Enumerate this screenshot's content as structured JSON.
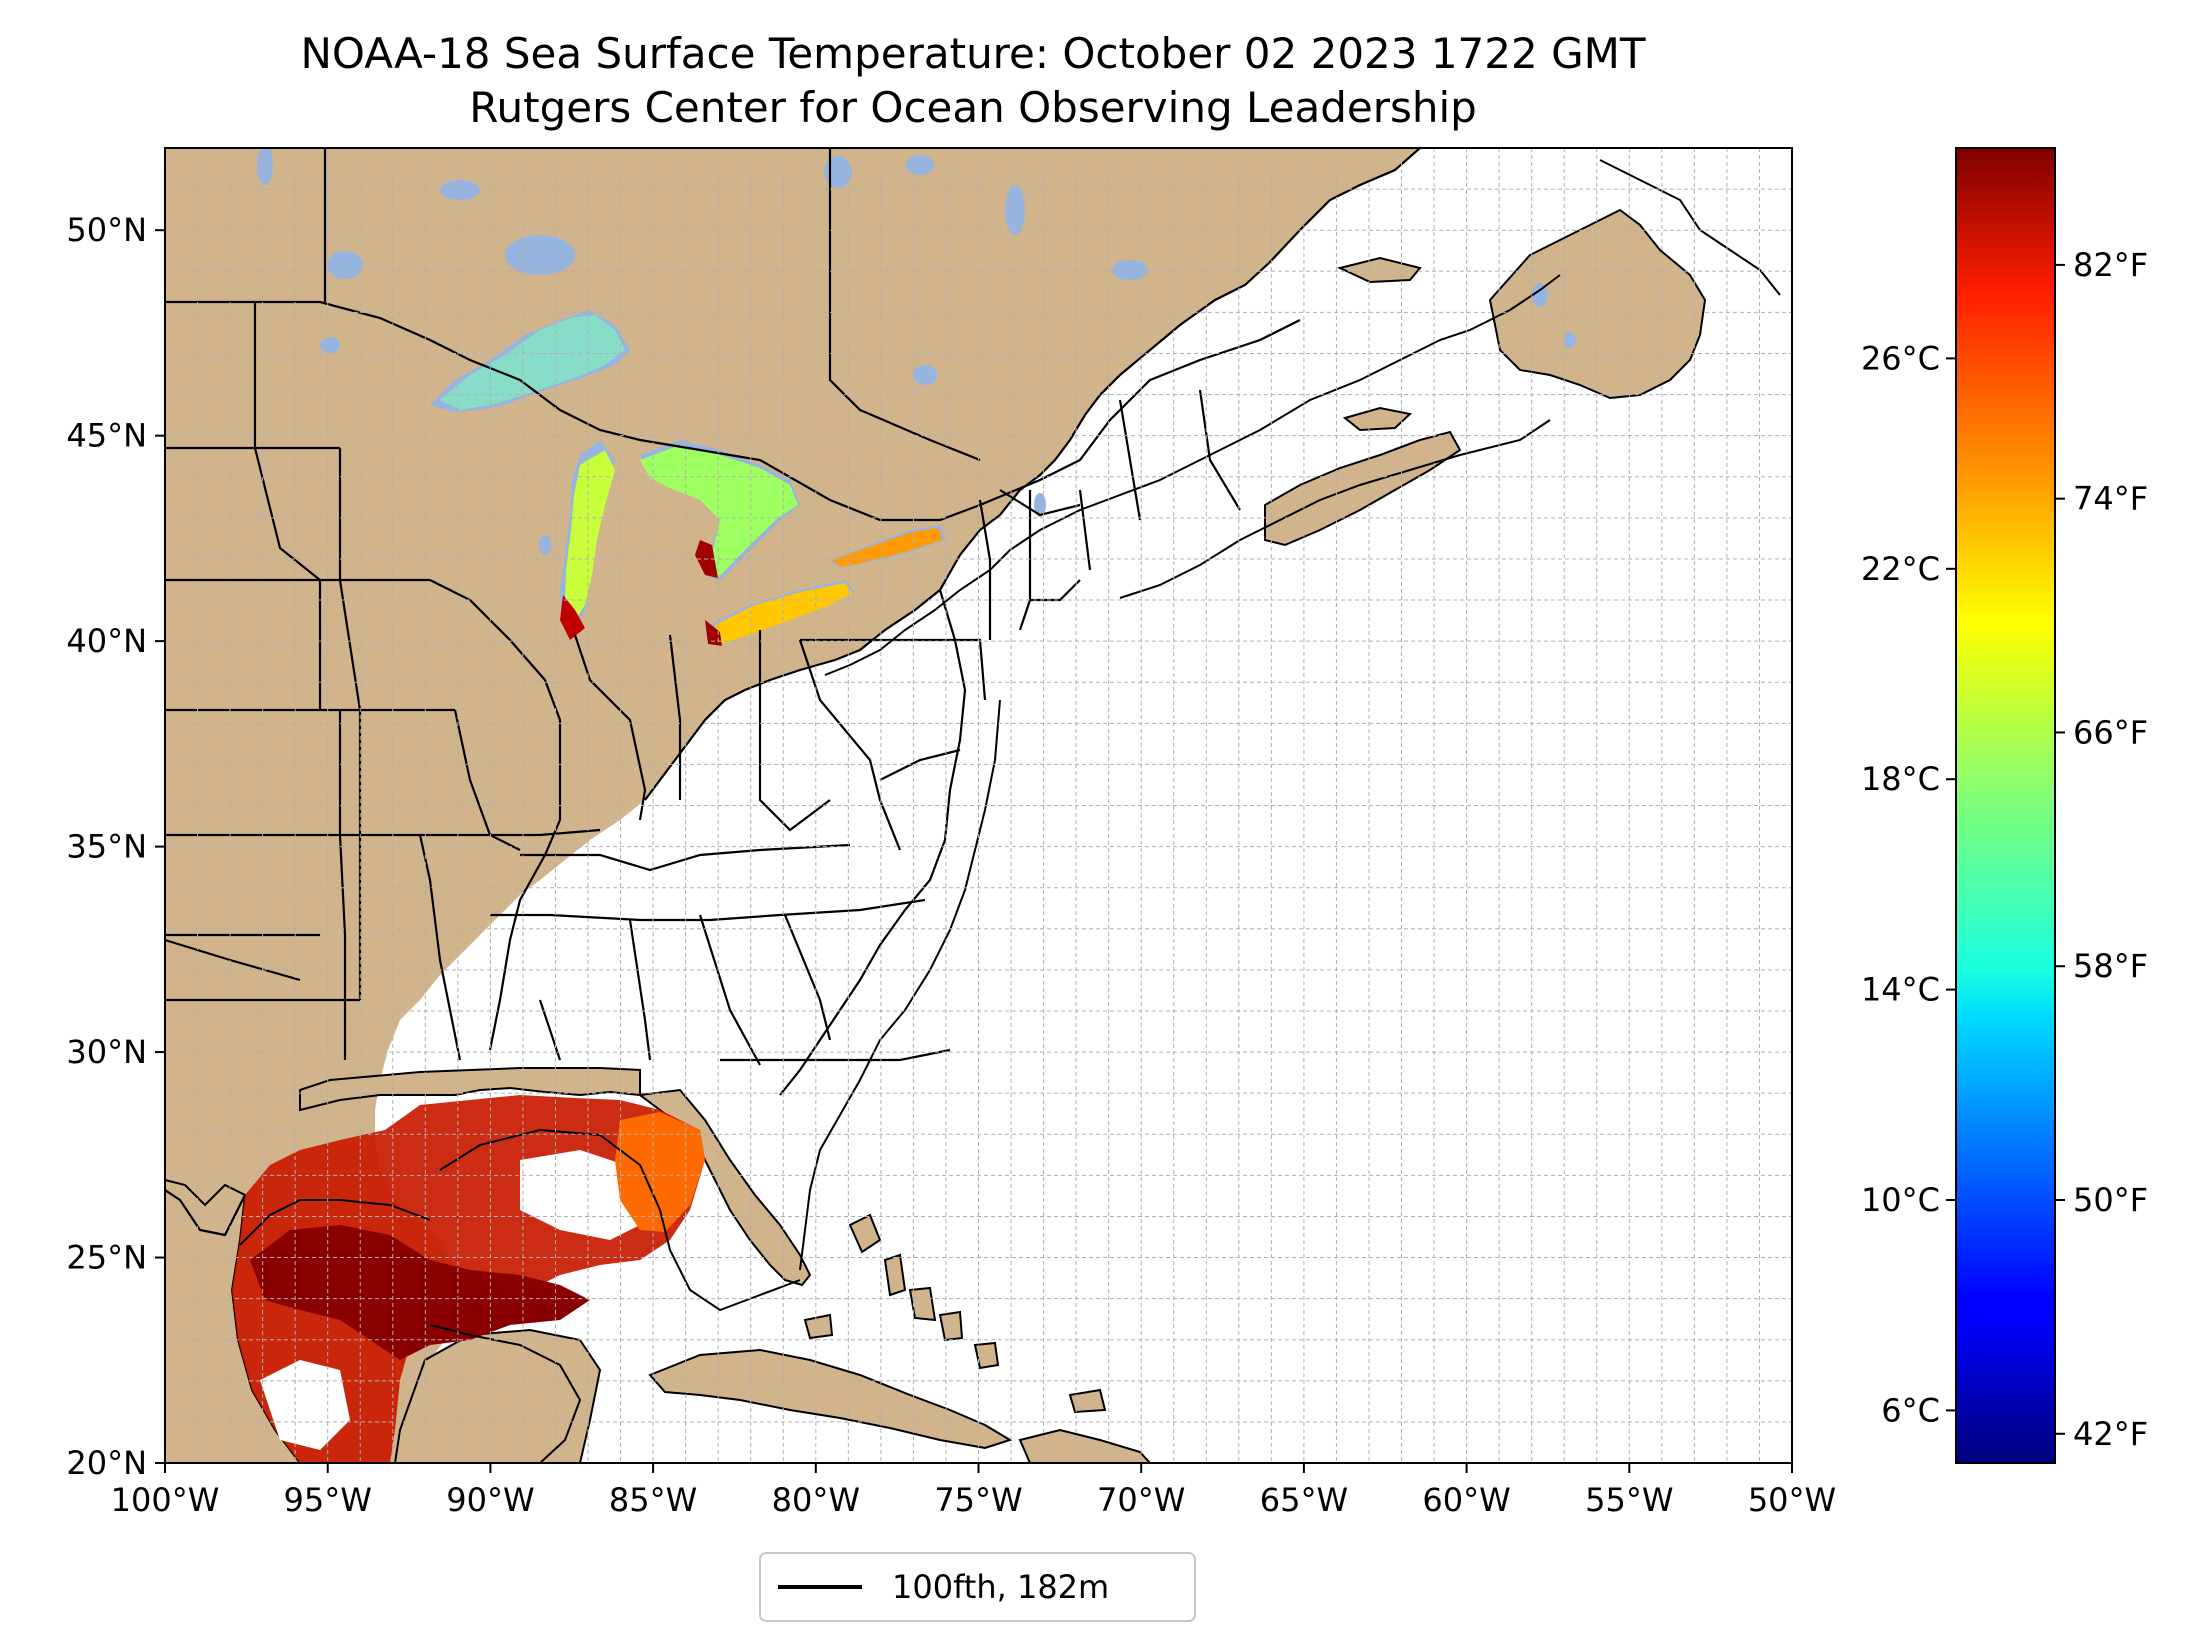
{
  "title": "NOAA-18 Sea Surface Temperature: October 02 2023 1722 GMT",
  "subtitle": "Rutgers Center for Ocean Observing Leadership",
  "colors": {
    "land": "#d2b48c",
    "lakes": "#96b4e0",
    "ocean": "#ffffff",
    "coastline": "#000000",
    "grid": "#b0b0b0"
  },
  "chart_data": {
    "type": "heatmap",
    "projection": "plate-carree",
    "xlim": [
      -100,
      -50
    ],
    "ylim": [
      20,
      52
    ],
    "x_ticks": [
      "100°W",
      "95°W",
      "90°W",
      "85°W",
      "80°W",
      "75°W",
      "70°W",
      "65°W",
      "60°W",
      "55°W",
      "50°W"
    ],
    "x_tick_values": [
      -100,
      -95,
      -90,
      -85,
      -80,
      -75,
      -70,
      -65,
      -60,
      -55,
      -50
    ],
    "y_ticks": [
      "20°N",
      "25°N",
      "30°N",
      "35°N",
      "40°N",
      "45°N",
      "50°N"
    ],
    "y_tick_values": [
      20,
      25,
      30,
      35,
      40,
      45,
      50
    ],
    "grid": true,
    "legend": {
      "placement": "bottom-center",
      "entries": [
        {
          "label": "100fth, 182m",
          "color": "#000000"
        }
      ]
    },
    "colorbar": {
      "colormap": "jet",
      "range_c": [
        5,
        30
      ],
      "celsius_ticks": [
        "6°C",
        "10°C",
        "14°C",
        "18°C",
        "22°C",
        "26°C"
      ],
      "celsius_values": [
        6,
        10,
        14,
        18,
        22,
        26
      ],
      "fahrenheit_ticks": [
        "42°F",
        "50°F",
        "58°F",
        "66°F",
        "74°F",
        "82°F"
      ],
      "fahrenheit_values": [
        42,
        50,
        58,
        66,
        74,
        82
      ]
    },
    "regions": [
      {
        "name": "Lake Superior",
        "sst_c": 14
      },
      {
        "name": "Lake Michigan",
        "sst_c": 18
      },
      {
        "name": "Lake Huron",
        "sst_c": 17
      },
      {
        "name": "Lake Erie",
        "sst_c": 22
      },
      {
        "name": "Lake Ontario",
        "sst_c": 22
      },
      {
        "name": "Gulf of Mexico",
        "sst_c": 29
      }
    ]
  }
}
